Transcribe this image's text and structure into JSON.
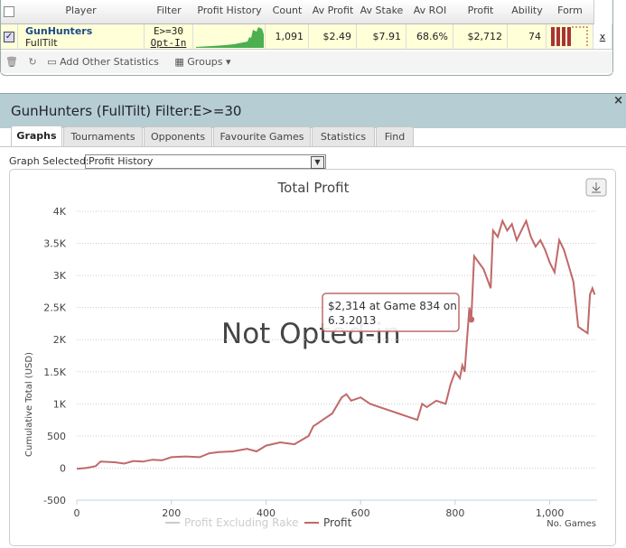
{
  "table": {
    "columns": [
      "Player",
      "Filter",
      "Profit History",
      "Count",
      "Av Profit",
      "Av Stake",
      "Av ROI",
      "Profit",
      "Ability",
      "Form"
    ],
    "row": {
      "player": "GunHunters",
      "site": "FullTilt",
      "filter": "E>=30",
      "opt_in": "Opt-In",
      "count": "1,091",
      "av_profit": "$2.49",
      "av_stake": "$7.91",
      "av_roi": "68.6%",
      "profit": "$2,712",
      "ability": "74",
      "remove": "x"
    }
  },
  "toolbar": {
    "add_stats": "Add Other Statistics",
    "groups": "Groups"
  },
  "panel": {
    "title": "GunHunters (FullTilt) Filter:E>=30",
    "close": "×",
    "tabs": [
      "Graphs",
      "Tournaments",
      "Opponents",
      "Favourite Games",
      "Statistics",
      "Find"
    ],
    "graph_label": "Graph Selected:",
    "graph_selected": "Profit History"
  },
  "chart_data": {
    "type": "line",
    "title": "Total Profit",
    "x_label": "No. Games",
    "y_label": "Cumulative Total (USD)",
    "watermark": "Not Opted-in",
    "xlim": [
      0,
      1100
    ],
    "xticks": [
      0,
      200,
      400,
      600,
      800,
      {
        "value": 1000,
        "label": "1,000"
      }
    ],
    "ylim": [
      -500,
      4000
    ],
    "yticks": [
      -500,
      0,
      500,
      {
        "value": 1000,
        "label": "1K"
      },
      {
        "value": 1500,
        "label": "1.5K"
      },
      {
        "value": 2000,
        "label": "2K"
      },
      {
        "value": 2500,
        "label": "2.5K"
      },
      {
        "value": 3000,
        "label": "3K"
      },
      {
        "value": 3500,
        "label": "3.5K"
      },
      {
        "value": 4000,
        "label": "4K"
      }
    ],
    "grid": true,
    "series": [
      {
        "name": "Profit Excluding Rake",
        "color": "#cccccc",
        "visible": false
      },
      {
        "name": "Profit",
        "color": "#c0686a",
        "x": [
          0,
          20,
          40,
          50,
          80,
          100,
          120,
          140,
          160,
          180,
          200,
          230,
          260,
          280,
          300,
          330,
          360,
          380,
          400,
          430,
          460,
          490,
          500,
          510,
          520,
          540,
          560,
          570,
          580,
          600,
          620,
          640,
          660,
          680,
          700,
          720,
          730,
          740,
          760,
          780,
          790,
          800,
          810,
          815,
          820,
          830,
          834,
          840,
          860,
          875,
          880,
          890,
          900,
          910,
          920,
          930,
          940,
          950,
          960,
          970,
          980,
          990,
          1000,
          1010,
          1020,
          1030,
          1040,
          1050,
          1060,
          1070,
          1080,
          1085,
          1090,
          1095
        ],
        "values": [
          -10,
          0,
          30,
          100,
          90,
          70,
          110,
          100,
          130,
          120,
          170,
          180,
          170,
          230,
          250,
          260,
          300,
          260,
          350,
          400,
          370,
          500,
          650,
          700,
          750,
          850,
          1100,
          1150,
          1050,
          1100,
          1000,
          950,
          900,
          850,
          800,
          750,
          1000,
          950,
          1050,
          1000,
          1300,
          1500,
          1400,
          1600,
          1500,
          2500,
          2314,
          3300,
          3100,
          2800,
          3700,
          3600,
          3850,
          3700,
          3800,
          3550,
          3700,
          3850,
          3600,
          3450,
          3550,
          3400,
          3200,
          3050,
          3550,
          3400,
          3150,
          2900,
          2200,
          2150,
          2100,
          2700,
          2800,
          2700
        ]
      }
    ],
    "annotation": {
      "lines": [
        "$2,314 at Game 834 on",
        "6.3.2013"
      ],
      "x": 834,
      "y": 2314
    }
  }
}
